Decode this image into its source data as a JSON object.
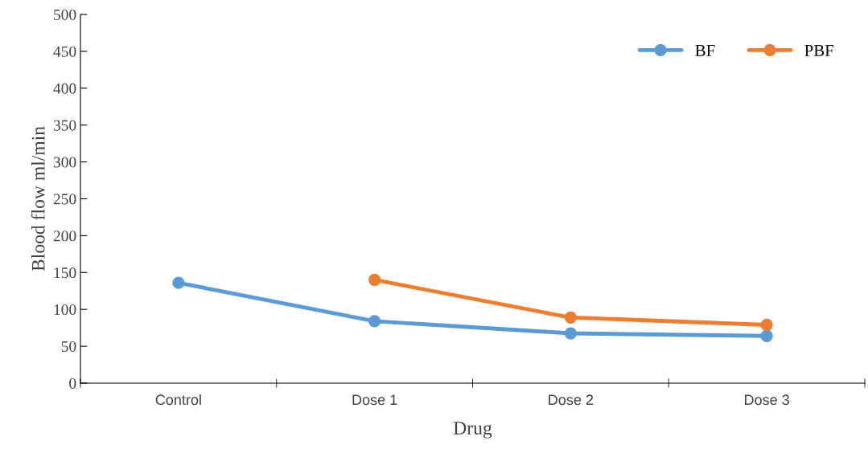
{
  "chart_data": {
    "type": "line",
    "xlabel": "Drug",
    "ylabel": "Blood flow ml/min",
    "categories": [
      "Control",
      "Dose 1",
      "Dose 2",
      "Dose 3"
    ],
    "series": [
      {
        "name": "BF",
        "color": "#5b9bd5",
        "values": [
          136,
          84,
          67.5,
          64
        ]
      },
      {
        "name": "PBF",
        "color": "#ed7d31",
        "values": [
          null,
          140,
          89,
          79
        ]
      }
    ],
    "ylim": [
      0,
      500
    ],
    "yticks": [
      0,
      50,
      100,
      150,
      200,
      250,
      300,
      350,
      400,
      450,
      500
    ],
    "grid": false,
    "legend": "top right",
    "marker": "circle",
    "line_style": "solid"
  }
}
